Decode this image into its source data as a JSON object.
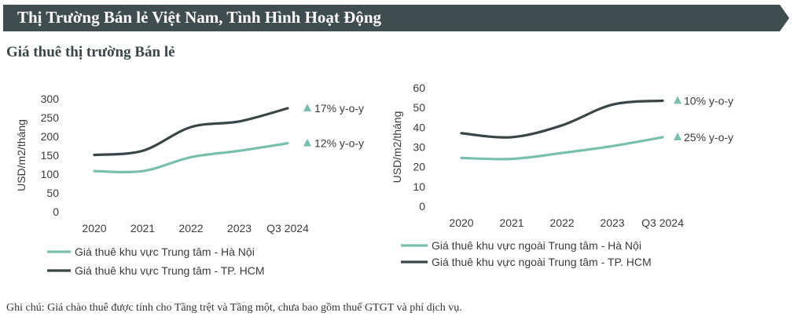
{
  "banner": {
    "title": "Thị Trường Bán lẻ Việt Nam, Tình Hình Hoạt Động",
    "color": "#3f4d4e"
  },
  "section_title": "Giá thuê thị trường Bán lẻ",
  "note": "Ghi chú: Giá chào thuê được tính cho Tầng trệt và Tầng một, chưa bao gồm thuế GTGT và phí dịch vụ.",
  "colors": {
    "hanoi": "#79bfae",
    "hcm": "#3a4546",
    "arrow": "#79bfae",
    "text": "#3a3a3a"
  },
  "chart_data": [
    {
      "type": "line",
      "title": "",
      "ylabel": "USD/m2/tháng",
      "xlabel": "",
      "categories": [
        "2020",
        "2021",
        "2022",
        "2023",
        "Q3 2024"
      ],
      "ylim": [
        0,
        300
      ],
      "yticks": [
        0,
        50,
        100,
        150,
        200,
        250,
        300
      ],
      "grid": false,
      "legend_position": "bottom",
      "series": [
        {
          "name": "Giá thuê khu vực Trung tâm - Hà Nội",
          "values": [
            108,
            108,
            145,
            162,
            182
          ],
          "annotation": "12% y-o-y"
        },
        {
          "name": "Giá thuê khu vực Trung tâm - TP. HCM",
          "values": [
            151,
            162,
            225,
            240,
            275
          ],
          "annotation": "17% y-o-y"
        }
      ]
    },
    {
      "type": "line",
      "title": "",
      "ylabel": "USD/m2/tháng",
      "xlabel": "",
      "categories": [
        "2020",
        "2021",
        "2022",
        "2023",
        "Q3 2024"
      ],
      "ylim": [
        0,
        60
      ],
      "yticks": [
        0,
        10,
        20,
        30,
        40,
        50,
        60
      ],
      "grid": false,
      "legend_position": "bottom",
      "series": [
        {
          "name": "Giá thuê khu vực ngoài Trung tâm - Hà Nội",
          "values": [
            24.5,
            24,
            27,
            30.5,
            35
          ],
          "annotation": "25% y-o-y"
        },
        {
          "name": "Giá thuê khu vực ngoài Trung tâm - TP. HCM",
          "values": [
            37,
            35,
            41,
            51.5,
            53.5
          ],
          "annotation": "10% y-o-y"
        }
      ]
    }
  ]
}
